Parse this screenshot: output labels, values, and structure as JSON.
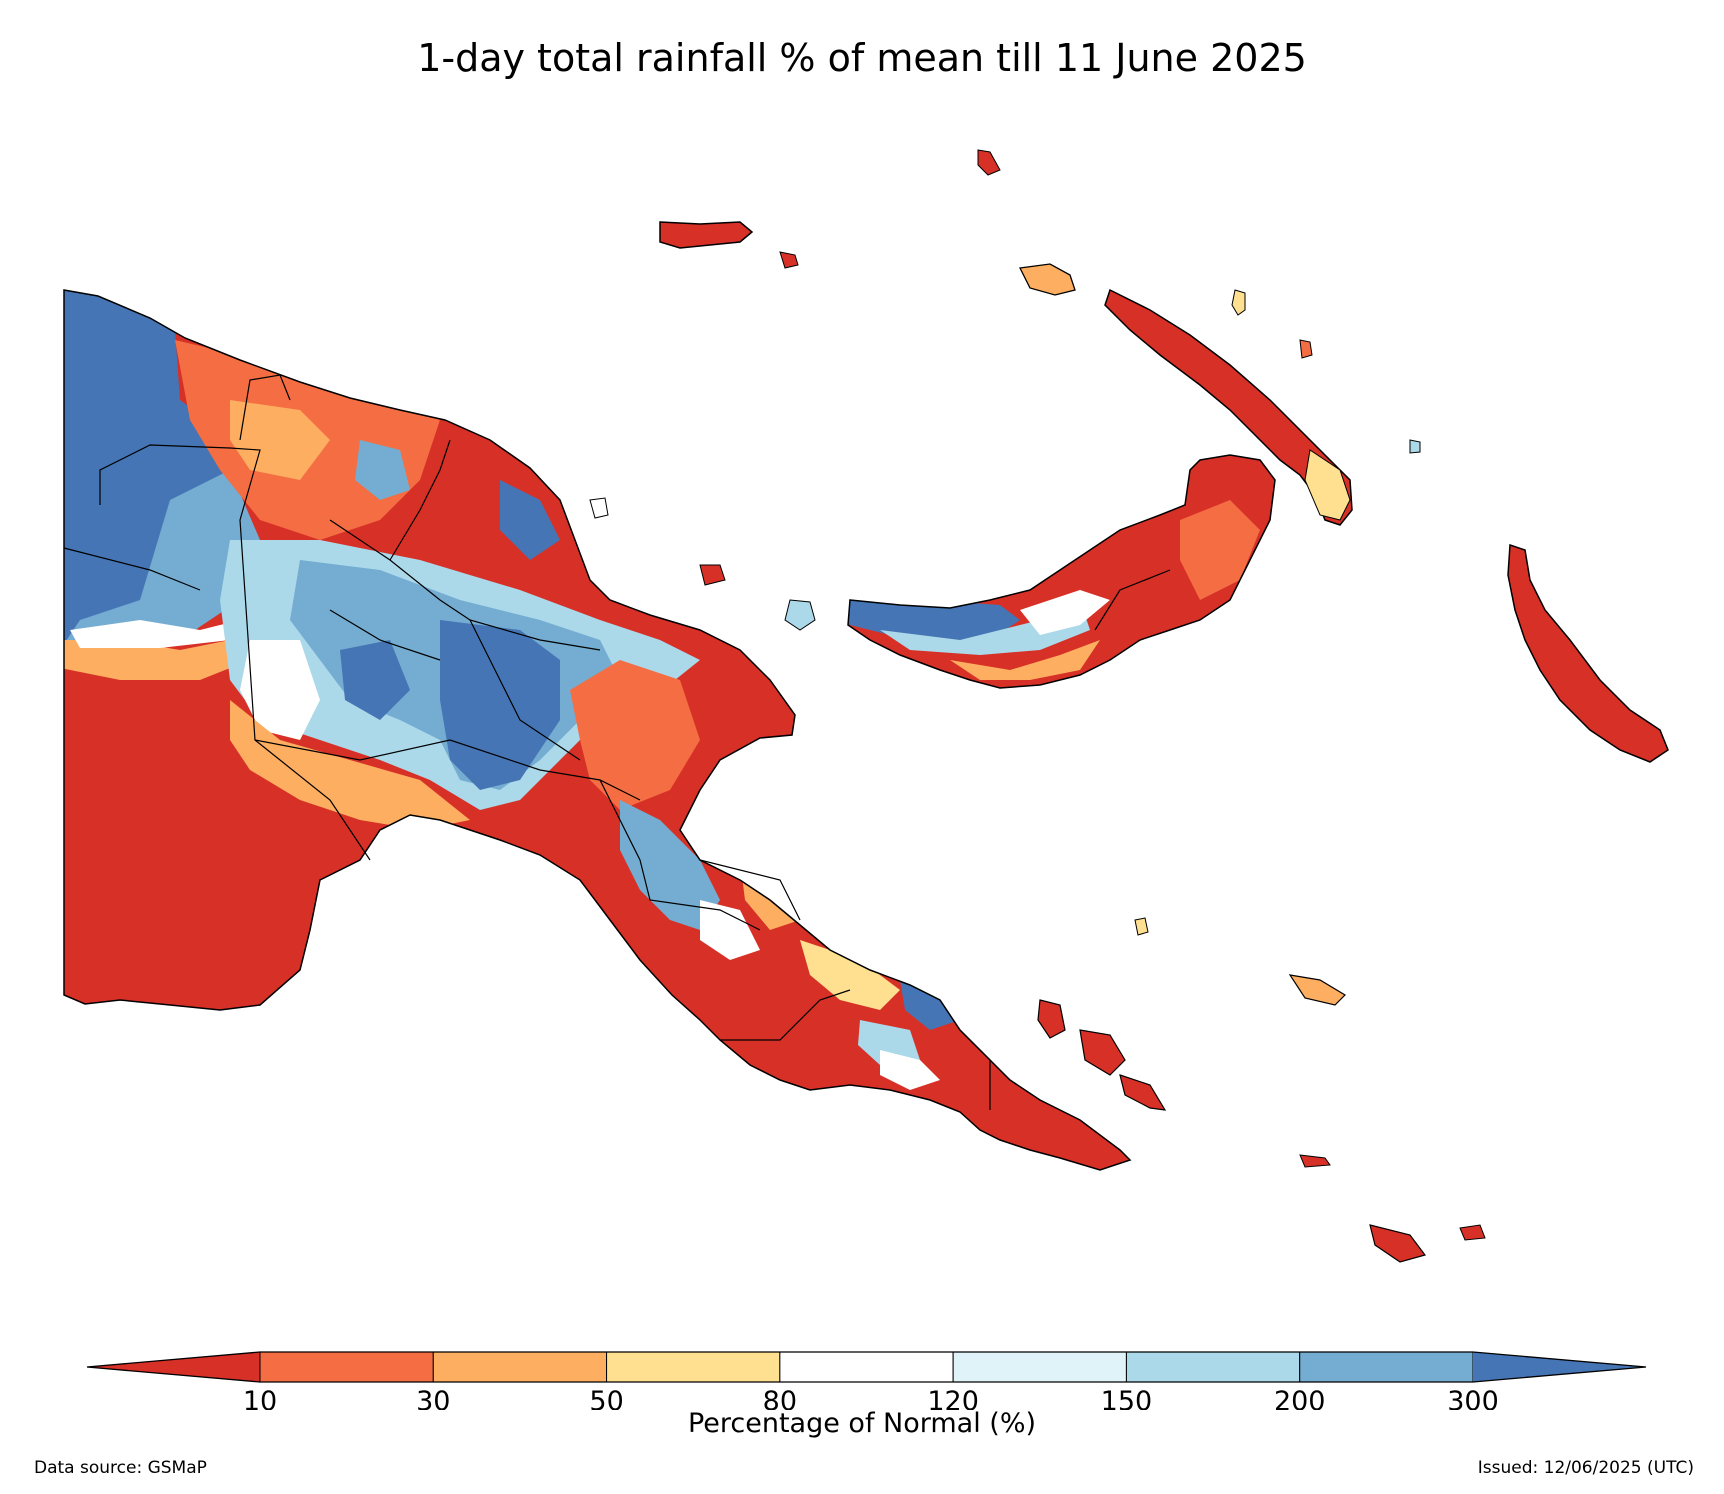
{
  "title": "1-day total rainfall % of mean till 11 June 2025",
  "colorbar": {
    "label": "Percentage of Normal (%)",
    "ticks": [
      "10",
      "30",
      "50",
      "80",
      "120",
      "150",
      "200",
      "300"
    ],
    "colors": [
      "#d73027",
      "#f46d43",
      "#fdae61",
      "#fee090",
      "#ffffff",
      "#e0f3f8",
      "#abd9e9",
      "#74add1",
      "#4575b4"
    ]
  },
  "footer": {
    "source": "Data source: GSMaP",
    "issued": "Issued: 12/06/2025 (UTC)"
  }
}
